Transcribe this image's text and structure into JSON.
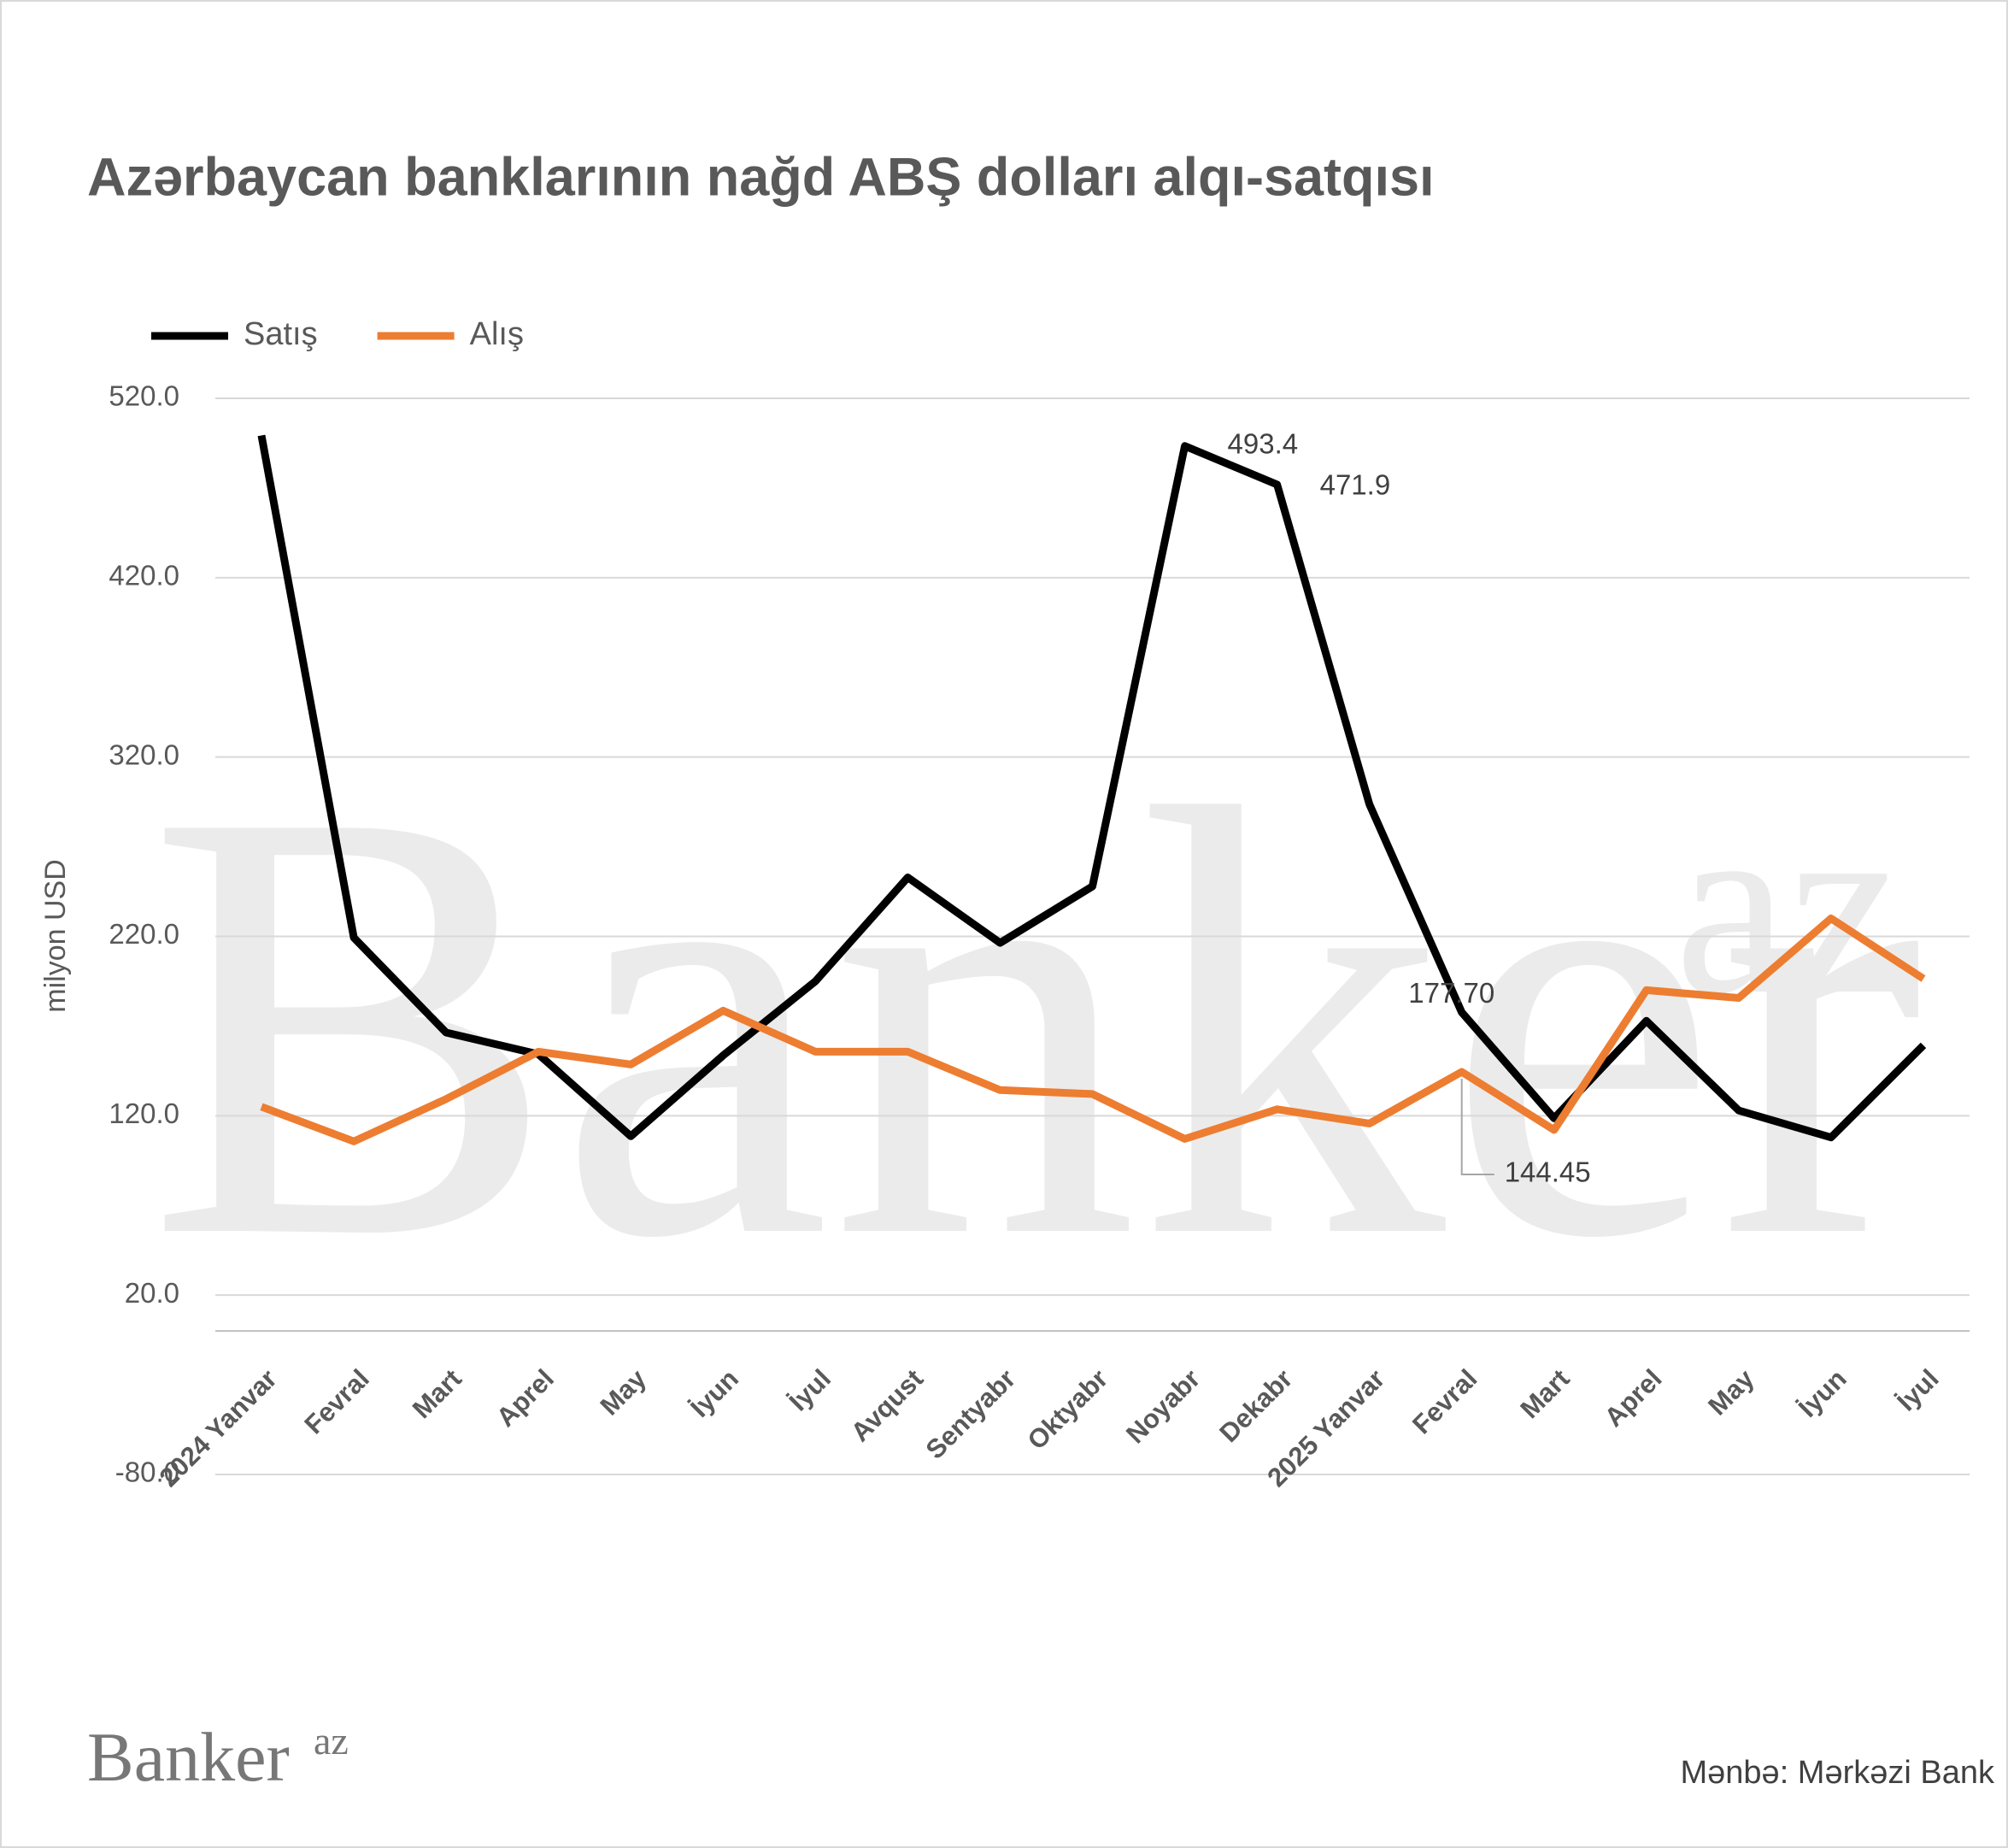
{
  "chart_data": {
    "type": "line",
    "title": "Azərbaycan banklarının nağd ABŞ dolları alqı-satqısı",
    "y_label": "milyon USD",
    "source": "Mənbə: Mərkəzi Bank",
    "brand": {
      "name": "Banker",
      "suffix": "az"
    },
    "categories": [
      "2024 Yanvar",
      "Fevral",
      "Mart",
      "Aprel",
      "May",
      "İyun",
      "İyul",
      "Avqust",
      "Sentyabr",
      "Oktyabr",
      "Noyabr",
      "Dekabr",
      "2025 Yanvar",
      "Fevral",
      "Mart",
      "Aprel",
      "May",
      "İyun",
      "İyul"
    ],
    "series": [
      {
        "name": "Satış",
        "color": "#000000",
        "values": [
          499.3,
          219.3,
          166.4,
          154.3,
          108.6,
          153.6,
          195.0,
          252.9,
          216.4,
          247.9,
          493.4,
          471.9,
          293.6,
          177.7,
          118.6,
          172.9,
          122.9,
          107.9,
          159.3
        ],
        "value_labels": [
          null,
          null,
          null,
          null,
          null,
          null,
          null,
          null,
          null,
          null,
          "493.4",
          "471.9",
          null,
          "177.70",
          null,
          null,
          null,
          null,
          null
        ]
      },
      {
        "name": "Alış",
        "color": "#ed7d31",
        "values": [
          125.0,
          105.7,
          129.3,
          155.7,
          148.6,
          178.6,
          155.7,
          155.7,
          134.3,
          132.1,
          107.1,
          123.6,
          115.7,
          144.45,
          112.1,
          190.0,
          185.7,
          230.0,
          196.4
        ],
        "value_labels": [
          null,
          null,
          null,
          null,
          null,
          null,
          null,
          null,
          null,
          null,
          null,
          null,
          null,
          "144.45",
          null,
          null,
          null,
          null,
          null
        ]
      }
    ],
    "ylim": [
      -80,
      520
    ],
    "yticks": [
      {
        "value": -80,
        "label": "-80.0"
      },
      {
        "value": 20,
        "label": "20.0"
      },
      {
        "value": 120,
        "label": "120.0"
      },
      {
        "value": 220,
        "label": "220.0"
      },
      {
        "value": 320,
        "label": "320.0"
      },
      {
        "value": 420,
        "label": "420.0"
      },
      {
        "value": 520,
        "label": "520.0"
      }
    ],
    "grid": true,
    "legend": "top-left"
  }
}
